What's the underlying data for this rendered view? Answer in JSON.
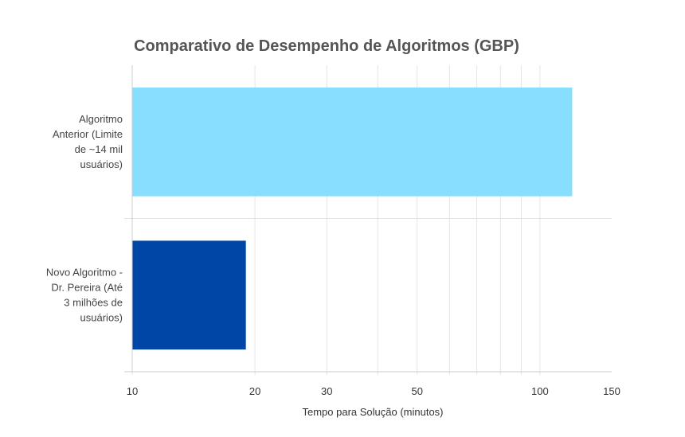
{
  "chart_data": {
    "type": "bar",
    "orientation": "horizontal",
    "title": "Comparativo de Desempenho de Algoritmos (GBP)",
    "xlabel": "Tempo para Solução (minutos)",
    "ylabel": "",
    "x_scale": "log",
    "xlim": [
      10,
      150
    ],
    "x_ticks": [
      "10",
      "20",
      "30",
      "50",
      "100",
      "150"
    ],
    "grid": true,
    "categories": [
      [
        "Algoritmo",
        "Anterior (Limite",
        "de ~14 mil",
        "usuários)"
      ],
      [
        "Novo Algoritmo -",
        "Dr. Pereira (Até",
        "3 milhões de",
        "usuários)"
      ]
    ],
    "values": [
      120,
      19
    ],
    "colors": [
      "#87DEFE",
      "#0046A6"
    ]
  }
}
